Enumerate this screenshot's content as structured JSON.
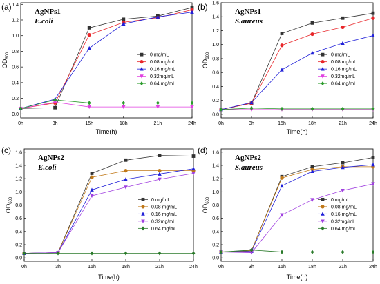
{
  "chart_data": [
    {
      "type": "line",
      "panel_label": "(a)",
      "title": "AgNPs1",
      "subtitle": "E.coli",
      "xlabel": "Time(h)",
      "ylabel": "OD600",
      "ylabel_main": "OD",
      "ylabel_sub": "600",
      "categories": [
        "0h",
        "3h",
        "15h",
        "18h",
        "21h",
        "24h"
      ],
      "ylim": [
        -0.05,
        1.42
      ],
      "yticks": [
        0.0,
        0.2,
        0.4,
        0.6,
        0.8,
        1.0,
        1.2,
        1.4
      ],
      "legend_position": "right-middle",
      "series": [
        {
          "name": "0 mg/mL",
          "color": "#333333",
          "marker": "square",
          "values": [
            0.07,
            0.08,
            1.1,
            1.21,
            1.25,
            1.36
          ]
        },
        {
          "name": "0.08 mg/mL",
          "color": "#e8262a",
          "marker": "circle",
          "values": [
            0.07,
            0.14,
            1.01,
            1.17,
            1.23,
            1.33
          ]
        },
        {
          "name": "0.16 mg/mL",
          "color": "#2020d8",
          "marker": "triangle-up",
          "values": [
            0.07,
            0.19,
            0.84,
            1.15,
            1.24,
            1.3
          ]
        },
        {
          "name": "0.32mg/mL",
          "color": "#e040e0",
          "marker": "triangle-down",
          "values": [
            0.07,
            0.15,
            0.09,
            0.09,
            0.09,
            0.09
          ]
        },
        {
          "name": "0.64 mg/mL",
          "color": "#2a9a2a",
          "marker": "diamond",
          "values": [
            0.07,
            0.18,
            0.14,
            0.14,
            0.14,
            0.14
          ]
        }
      ]
    },
    {
      "type": "line",
      "panel_label": "(b)",
      "title": "AgNPs1",
      "subtitle": "S.aureus",
      "xlabel": "Time(h)",
      "ylabel": "OD600",
      "ylabel_main": "OD",
      "ylabel_sub": "600",
      "categories": [
        "0h",
        "3h",
        "15h",
        "18h",
        "21h",
        "24h"
      ],
      "ylim": [
        -0.05,
        1.6
      ],
      "yticks": [
        0.0,
        0.2,
        0.4,
        0.6,
        0.8,
        1.0,
        1.2,
        1.4,
        1.6
      ],
      "legend_position": "right-middle",
      "series": [
        {
          "name": "0 mg/mL",
          "color": "#333333",
          "marker": "square",
          "values": [
            0.07,
            0.16,
            1.16,
            1.31,
            1.38,
            1.45
          ]
        },
        {
          "name": "0.08 mg/mL",
          "color": "#e8262a",
          "marker": "circle",
          "values": [
            0.07,
            0.16,
            0.99,
            1.15,
            1.25,
            1.38
          ]
        },
        {
          "name": "0.16 mg/mL",
          "color": "#2020d8",
          "marker": "triangle-up",
          "values": [
            0.07,
            0.17,
            0.64,
            0.88,
            1.02,
            1.13
          ]
        },
        {
          "name": "0.32mg/mL",
          "color": "#e040e0",
          "marker": "triangle-down",
          "values": [
            0.07,
            0.07,
            0.07,
            0.07,
            0.07,
            0.07
          ]
        },
        {
          "name": "0.64 mg/mL",
          "color": "#2a9a2a",
          "marker": "diamond",
          "values": [
            0.07,
            0.09,
            0.08,
            0.08,
            0.08,
            0.08
          ]
        }
      ]
    },
    {
      "type": "line",
      "panel_label": "(c)",
      "title": "AgNPs2",
      "subtitle": "E.coli",
      "xlabel": "Time(h)",
      "ylabel": "OD600",
      "ylabel_main": "OD",
      "ylabel_sub": "600",
      "categories": [
        "0h",
        "3h",
        "15h",
        "18h",
        "21h",
        "24h"
      ],
      "ylim": [
        -0.05,
        1.65
      ],
      "yticks": [
        0.0,
        0.2,
        0.4,
        0.6,
        0.8,
        1.0,
        1.2,
        1.4,
        1.6
      ],
      "legend_position": "right-middle",
      "series": [
        {
          "name": "0 mg/mL",
          "color": "#333333",
          "marker": "square",
          "values": [
            0.07,
            0.08,
            1.28,
            1.48,
            1.55,
            1.54
          ]
        },
        {
          "name": "0.08 mg/mL",
          "color": "#c07818",
          "marker": "circle",
          "values": [
            0.07,
            0.08,
            1.22,
            1.32,
            1.32,
            1.32
          ]
        },
        {
          "name": "0.16 mg/mL",
          "color": "#2020d8",
          "marker": "triangle-up",
          "values": [
            0.07,
            0.08,
            1.03,
            1.19,
            1.27,
            1.35
          ]
        },
        {
          "name": "0.32mg/mL",
          "color": "#a040e0",
          "marker": "triangle-down",
          "values": [
            0.07,
            0.08,
            0.94,
            1.07,
            1.19,
            1.28
          ]
        },
        {
          "name": "0.64 mg/mL",
          "color": "#2a7a2a",
          "marker": "diamond",
          "values": [
            0.07,
            0.07,
            0.07,
            0.07,
            0.07,
            0.07
          ]
        }
      ]
    },
    {
      "type": "line",
      "panel_label": "(d)",
      "title": "AgNPs2",
      "subtitle": "S.aureus",
      "xlabel": "Time(h)",
      "ylabel": "OD600",
      "ylabel_main": "OD",
      "ylabel_sub": "600",
      "categories": [
        "0h",
        "3h",
        "15h",
        "18h",
        "21h",
        "24h"
      ],
      "ylim": [
        -0.05,
        1.65
      ],
      "yticks": [
        0.0,
        0.2,
        0.4,
        0.6,
        0.8,
        1.0,
        1.2,
        1.4,
        1.6
      ],
      "legend_position": "right-middle",
      "series": [
        {
          "name": "0 mg/mL",
          "color": "#333333",
          "marker": "square",
          "values": [
            0.09,
            0.11,
            1.23,
            1.38,
            1.44,
            1.52
          ]
        },
        {
          "name": "0.08 mg/mL",
          "color": "#c07818",
          "marker": "circle",
          "values": [
            0.09,
            0.11,
            1.21,
            1.34,
            1.38,
            1.38
          ]
        },
        {
          "name": "0.16 mg/mL",
          "color": "#2020d8",
          "marker": "triangle-up",
          "values": [
            0.09,
            0.1,
            1.09,
            1.31,
            1.37,
            1.41
          ]
        },
        {
          "name": "0.32mg/mL",
          "color": "#a040e0",
          "marker": "triangle-down",
          "values": [
            0.09,
            0.08,
            0.65,
            0.88,
            1.02,
            1.12
          ]
        },
        {
          "name": "0.64 mg/mL",
          "color": "#2a7a2a",
          "marker": "diamond",
          "values": [
            0.09,
            0.12,
            0.09,
            0.09,
            0.09,
            0.09
          ]
        }
      ]
    }
  ]
}
